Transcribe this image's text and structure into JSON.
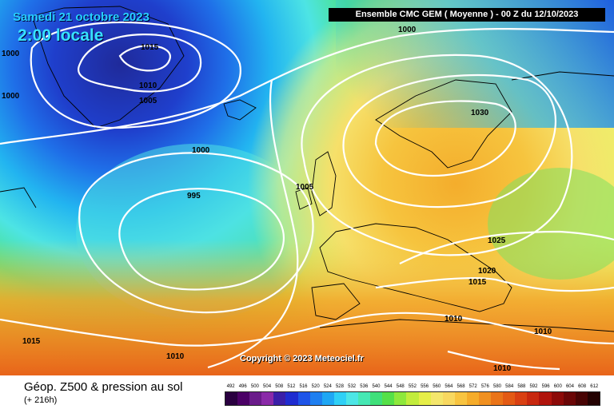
{
  "header": {
    "date": "Samedi 21 octobre 2023",
    "time": "2:00 locale",
    "title": "Ensemble CMC GEM  ( Moyenne )  -  00 Z du 12/10/2023"
  },
  "copyright": "Copyright © 2023 Meteociel.fr",
  "isobar_labels": [
    {
      "id": "l1000-top",
      "text": "1000"
    },
    {
      "id": "l1015-gr",
      "text": "1015"
    },
    {
      "id": "l1000-left",
      "text": "1000"
    },
    {
      "id": "l1000-left2",
      "text": "1000"
    },
    {
      "id": "l1010-gr",
      "text": "1010"
    },
    {
      "id": "l1005-gr",
      "text": "1005"
    },
    {
      "id": "l1000-atl",
      "text": "1000"
    },
    {
      "id": "l995",
      "text": "995"
    },
    {
      "id": "l1005-uk",
      "text": "1005"
    },
    {
      "id": "l1030",
      "text": "1030"
    },
    {
      "id": "l1025",
      "text": "1025"
    },
    {
      "id": "l1020",
      "text": "1020"
    },
    {
      "id": "l1015-eu",
      "text": "1015"
    },
    {
      "id": "l1010-med",
      "text": "1010"
    },
    {
      "id": "l1010-e",
      "text": "1010"
    },
    {
      "id": "l1015-sw",
      "text": "1015"
    },
    {
      "id": "l1010-s",
      "text": "1010"
    },
    {
      "id": "l1010-af",
      "text": "1010"
    }
  ],
  "legend": {
    "title": "Géop. Z500 & pression au sol",
    "subtitle": "(+ 216h)",
    "scale_values": [
      "492",
      "496",
      "500",
      "504",
      "508",
      "512",
      "516",
      "520",
      "524",
      "528",
      "532",
      "536",
      "540",
      "544",
      "548",
      "552",
      "556",
      "560",
      "564",
      "568",
      "572",
      "576",
      "580",
      "584",
      "588",
      "592",
      "596",
      "600",
      "604",
      "608",
      "612"
    ],
    "scale_colors": [
      "#2a0040",
      "#4b0066",
      "#6a1b8a",
      "#8a2aa8",
      "#3a1fa8",
      "#1f2cd0",
      "#1f55e8",
      "#1f7ff0",
      "#1fa7f4",
      "#2fd0f6",
      "#4de6e6",
      "#46e8b4",
      "#3fe07a",
      "#55e048",
      "#8ee83c",
      "#c2ec3c",
      "#e6ee48",
      "#f4e66c",
      "#f8d860",
      "#f8c440",
      "#f5ac2a",
      "#f09020",
      "#ea7418",
      "#e35a14",
      "#d94012",
      "#c8280f",
      "#b0140c",
      "#8c0a08",
      "#6a0606",
      "#480404",
      "#240202"
    ]
  }
}
